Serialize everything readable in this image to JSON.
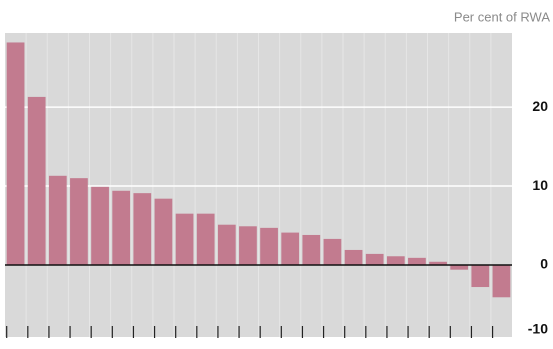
{
  "chart_data": {
    "type": "bar",
    "y_axis_label": "Per cent of RWA",
    "categories": [
      null,
      null,
      null,
      null,
      null,
      null,
      null,
      null,
      null,
      null,
      null,
      null,
      null,
      null,
      null,
      null,
      null,
      null,
      null,
      null,
      null,
      null,
      null,
      null
    ],
    "values": [
      28.2,
      21.3,
      11.3,
      11.0,
      9.9,
      9.4,
      9.1,
      8.4,
      6.5,
      6.5,
      5.1,
      4.9,
      4.7,
      4.1,
      3.8,
      3.3,
      1.9,
      1.4,
      1.1,
      0.9,
      0.4,
      -0.6,
      -2.8,
      -4.1
    ],
    "color": "#c27b8f",
    "ylim": [
      -8.5,
      29.4
    ],
    "yticks": [
      -10,
      0,
      10,
      20
    ],
    "grid": true
  }
}
